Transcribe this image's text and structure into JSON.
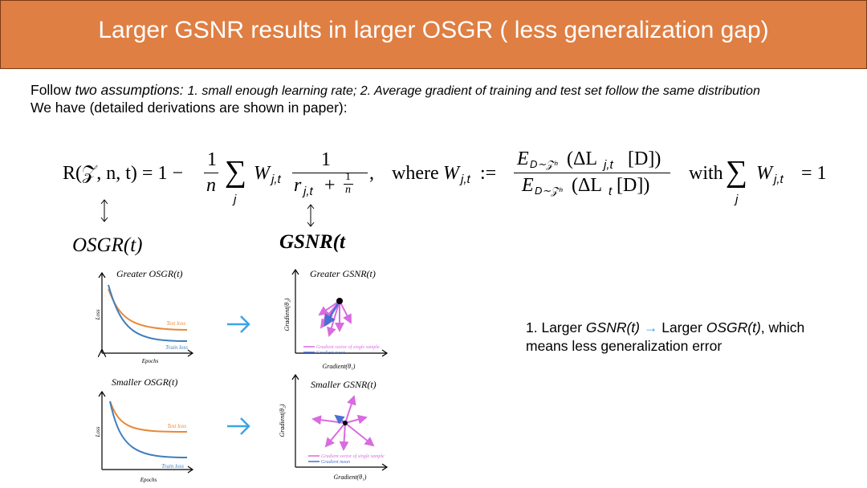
{
  "header": {
    "title": "Larger GSNR results in larger OSGR ( less generalization gap)"
  },
  "intro": {
    "line1_lead": "Follow",
    "line1_emph": "two assumptions:",
    "line1_rest": "1. small enough learning rate; 2. Average gradient of training and test set follow the same distribution",
    "line2": "We have (detailed derivations are shown in paper):"
  },
  "formula": {
    "lhs": "R(𝒵, n, t) = 1 −",
    "frac1_num": "1",
    "frac1_den": "n",
    "sum1": "∑",
    "sum1_index": "j",
    "weight": "W",
    "weight_sub": "j,t",
    "frac2_num": "1",
    "frac2_den": "r",
    "frac2_den_sub": "j,t",
    "frac2_den_rest": "+ ",
    "frac2_small_num": "1",
    "frac2_small_den": "n",
    "comma": ",",
    "where": "where",
    "def_lhs": "W",
    "def_lhs_sub": "j,t",
    "def_op": ":=",
    "num": "E",
    "num_sub": "D∼𝒵ⁿ",
    "num_rest": "(ΔL",
    "num_rest_sub": "j,t",
    "num_end": "[D])",
    "den": "E",
    "den_sub": "D∼𝒵ⁿ",
    "den_rest": "(ΔL",
    "den_rest_sub": "t",
    "den_end": "[D])",
    "with": "with",
    "sum2": "∑",
    "sum2_index": "j",
    "sum2_term": "W",
    "sum2_term_sub": "j,t",
    "sum2_rhs": "= 1"
  },
  "labels": {
    "osgr": "OSGR(t)",
    "gsnr": "GSNR(t"
  },
  "panels": [
    {
      "title": "Greater OSGR(t)",
      "y_label": "Loss",
      "x_label": "Epochs",
      "legend": [
        "Test loss",
        "Train loss"
      ]
    },
    {
      "title": "Greater GSNR(t)",
      "y_label": "Gradient(θ₂)",
      "x_label": "Gradient(θ₁)",
      "legend": [
        "Gradient vector of single sample",
        "Gradient mean"
      ]
    },
    {
      "title": "Smaller OSGR(t)",
      "y_label": "Loss",
      "x_label": "Epochs",
      "legend": [
        "Test loss",
        "Train loss"
      ]
    },
    {
      "title": "Smaller GSNR(t)",
      "y_label": "Gradient(θ₂)",
      "x_label": "Gradient(θ₁)",
      "legend": [
        "Gradient vector of single sample",
        "Gradient mean"
      ]
    }
  ],
  "note": {
    "lead": "1. Larger",
    "gsnr": "GSNR(t)",
    "arrow": "→",
    "mid": "Larger",
    "osgr": "OSGR(t)",
    "tail": ", which",
    "line2": "means less generalization error"
  }
}
